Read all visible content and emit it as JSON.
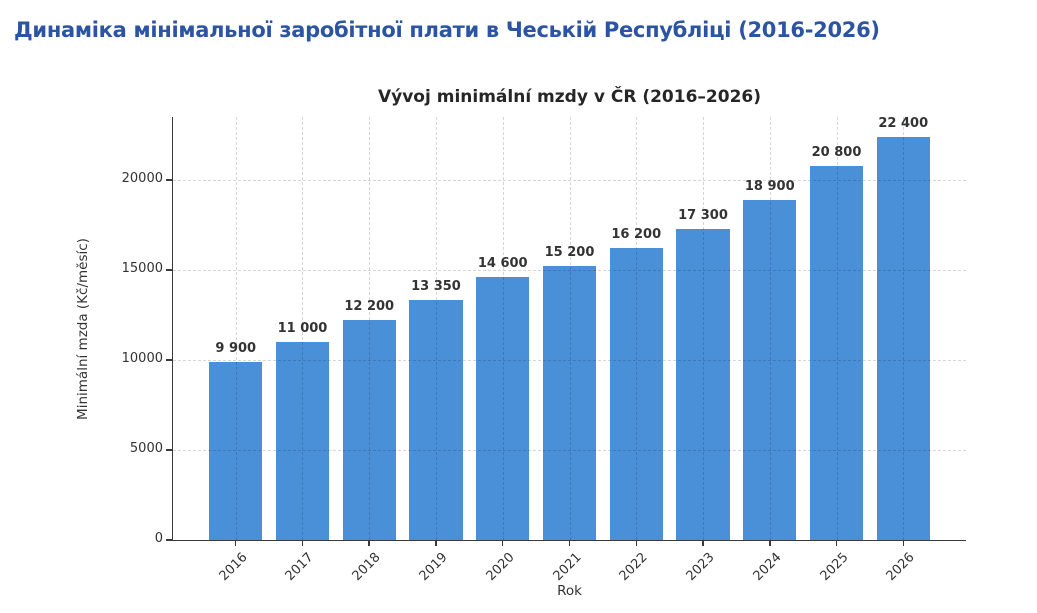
{
  "page": {
    "title": "Динаміка мінімальної заробітної плати в Чеській Республіці (2016-2026)"
  },
  "colors": {
    "page_title": "#2b55a2",
    "bar": "#4a90d9",
    "chart_text": "#333333",
    "axis": "#3a3a3a",
    "grid": "#d9d9d9"
  },
  "chart_data": {
    "type": "bar",
    "title": "Vývoj minimální mzdy v ČR (2016–2026)",
    "xlabel": "Rok",
    "ylabel": "Minimální mzda (Kč/měsíc)",
    "categories": [
      "2016",
      "2017",
      "2018",
      "2019",
      "2020",
      "2021",
      "2022",
      "2023",
      "2024",
      "2025",
      "2026"
    ],
    "values": [
      9900,
      11000,
      12200,
      13350,
      14600,
      15200,
      16200,
      17300,
      18900,
      20800,
      22400
    ],
    "bar_labels": [
      "9 900",
      "11 000",
      "12 200",
      "13 350",
      "14 600",
      "15 200",
      "16 200",
      "17 300",
      "18 900",
      "20 800",
      "22 400"
    ],
    "yticks": [
      0,
      5000,
      10000,
      15000,
      20000
    ],
    "ylim": [
      0,
      23500
    ],
    "grid": "dashed, both axes, drawn over bars",
    "legend": "none",
    "bar_color": "#4a90d9"
  }
}
